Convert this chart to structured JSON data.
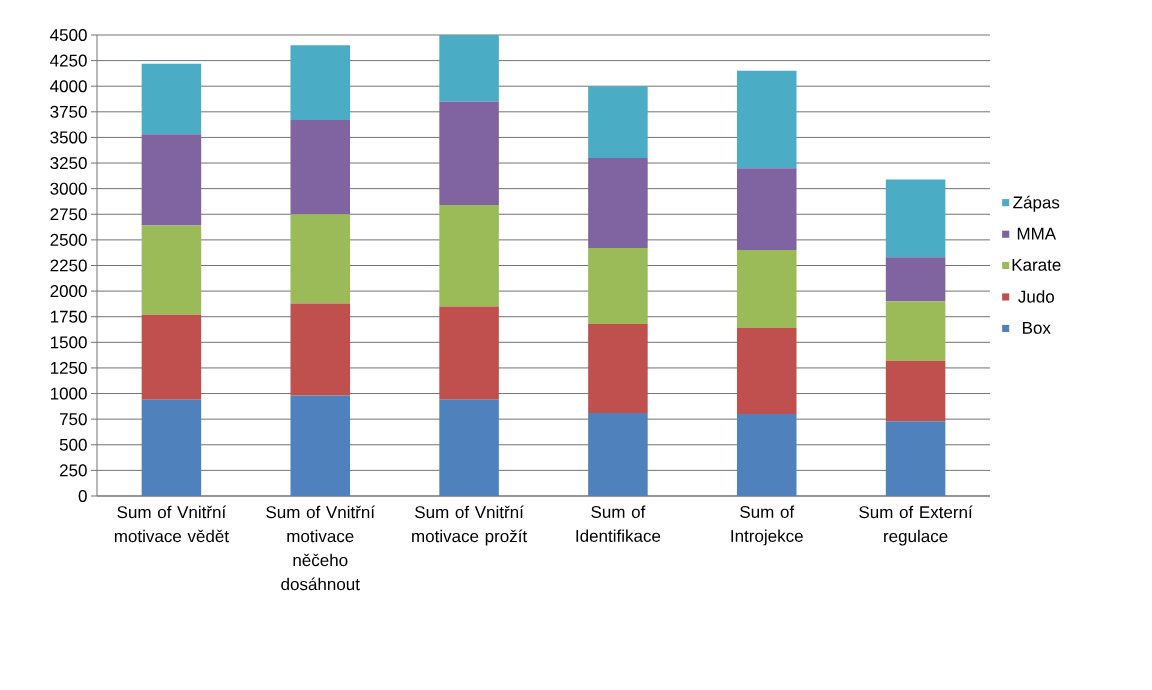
{
  "chart_data": {
    "type": "bar",
    "stacked": true,
    "categories": [
      "Sum of Vnitřní motivace vědět",
      "Sum of Vnitřní motivace něčeho dosáhnout",
      "Sum of Vnitřní motivace prožít",
      "Sum of Identifikace",
      "Sum of Introjekce",
      "Sum of Externí regulace"
    ],
    "series": [
      {
        "name": "Box",
        "color": "#4f81bd",
        "values": [
          940,
          980,
          940,
          810,
          800,
          730
        ]
      },
      {
        "name": "Judo",
        "color": "#c0504d",
        "values": [
          830,
          900,
          910,
          870,
          840,
          590
        ]
      },
      {
        "name": "Karate",
        "color": "#9bbb59",
        "values": [
          870,
          870,
          990,
          740,
          760,
          580
        ]
      },
      {
        "name": "MMA",
        "color": "#8064a2",
        "values": [
          890,
          920,
          1010,
          880,
          800,
          430
        ]
      },
      {
        "name": "Zápas",
        "color": "#4bacc6",
        "values": [
          690,
          730,
          650,
          700,
          950,
          760
        ]
      }
    ],
    "ylim": [
      0,
      4500
    ],
    "yticks": [
      0,
      250,
      500,
      750,
      1000,
      1250,
      1500,
      1750,
      2000,
      2250,
      2500,
      2750,
      3000,
      3250,
      3500,
      3750,
      4000,
      4250,
      4500
    ],
    "grid": "y",
    "legend": "right"
  }
}
